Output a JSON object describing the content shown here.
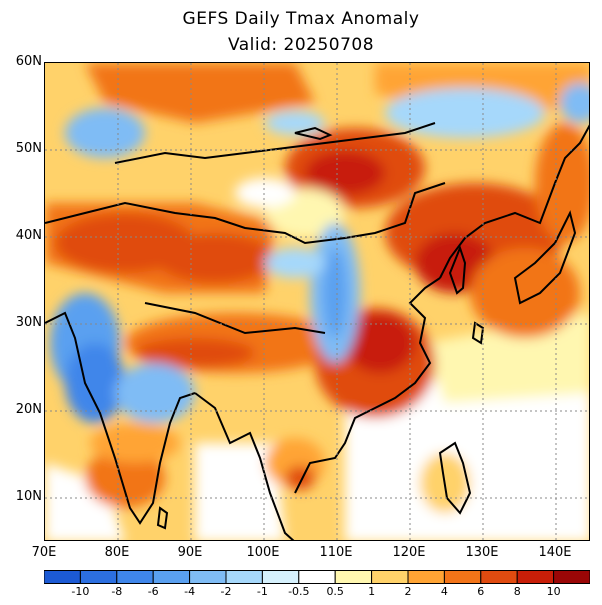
{
  "title": "GEFS Daily Tmax Anomaly",
  "subtitle": "Valid: 20250708",
  "lat_labels": [
    "60N",
    "50N",
    "40N",
    "30N",
    "20N",
    "10N"
  ],
  "lon_labels": [
    "70E",
    "80E",
    "90E",
    "100E",
    "110E",
    "120E",
    "130E",
    "140E"
  ],
  "colorbar": {
    "tick_labels": [
      "-10",
      "-8",
      "-6",
      "-4",
      "-2",
      "-1",
      "-0.5",
      "0.5",
      "1",
      "2",
      "4",
      "6",
      "8",
      "10"
    ],
    "colors": [
      "#1c5ad4",
      "#2c6fe0",
      "#3f86ea",
      "#5aa0f0",
      "#7fbcf5",
      "#a6d8fb",
      "#d6f1fd",
      "#ffffff",
      "#fff7b0",
      "#ffd26a",
      "#ffa434",
      "#f27418",
      "#e04b10",
      "#c81e08",
      "#9a0606"
    ]
  },
  "map_extent": {
    "lon_min": 70,
    "lon_max": 145,
    "lat_min": 5,
    "lat_max": 60
  }
}
